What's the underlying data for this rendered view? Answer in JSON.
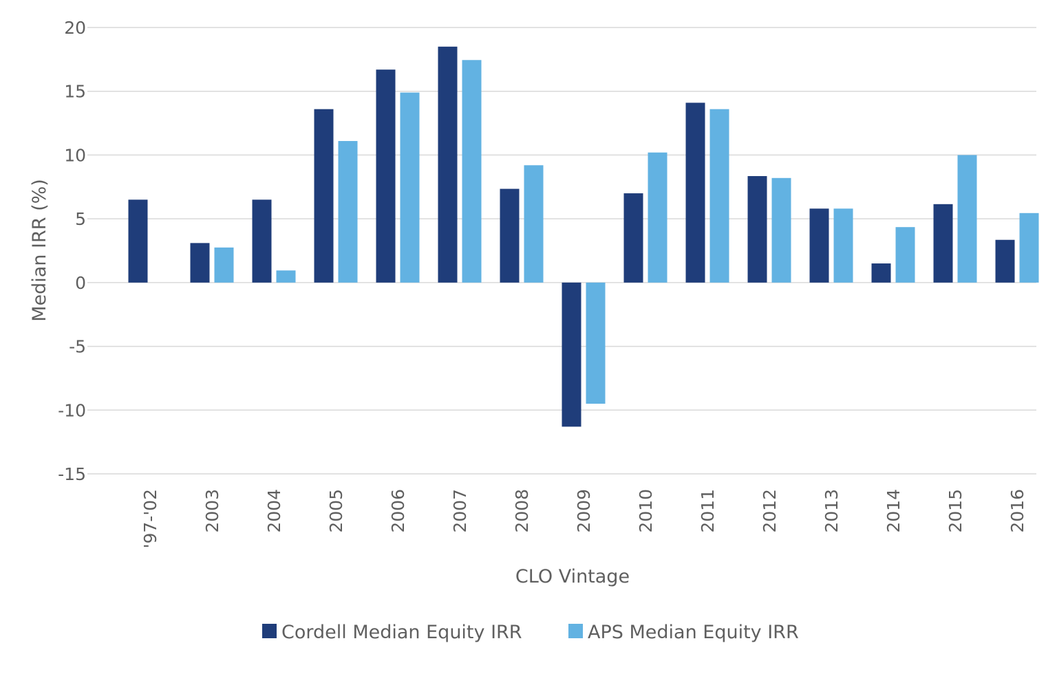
{
  "chart_data": {
    "type": "bar",
    "title": "",
    "xlabel": "CLO Vintage",
    "ylabel": "Median IRR (%)",
    "ylim": [
      -15,
      20
    ],
    "yticks": [
      -15,
      -10,
      -5,
      0,
      5,
      10,
      15,
      20
    ],
    "grid": true,
    "legend_position": "bottom",
    "categories": [
      "'97-'02",
      "2003",
      "2004",
      "2005",
      "2006",
      "2007",
      "2008",
      "2009",
      "2010",
      "2011",
      "2012",
      "2013",
      "2014",
      "2015",
      "2016"
    ],
    "series": [
      {
        "name": "Cordell Median Equity IRR",
        "color": "#1f3d7a",
        "values": [
          6.5,
          3.1,
          6.5,
          13.6,
          16.7,
          18.5,
          7.35,
          -11.3,
          7.0,
          14.1,
          8.35,
          5.8,
          1.5,
          6.15,
          3.35
        ]
      },
      {
        "name": "APS Median Equity IRR",
        "color": "#62b2e2",
        "values": [
          null,
          2.75,
          0.95,
          11.1,
          14.9,
          17.45,
          9.2,
          -9.5,
          10.2,
          13.6,
          8.2,
          5.8,
          4.35,
          10.0,
          5.45
        ]
      }
    ]
  }
}
